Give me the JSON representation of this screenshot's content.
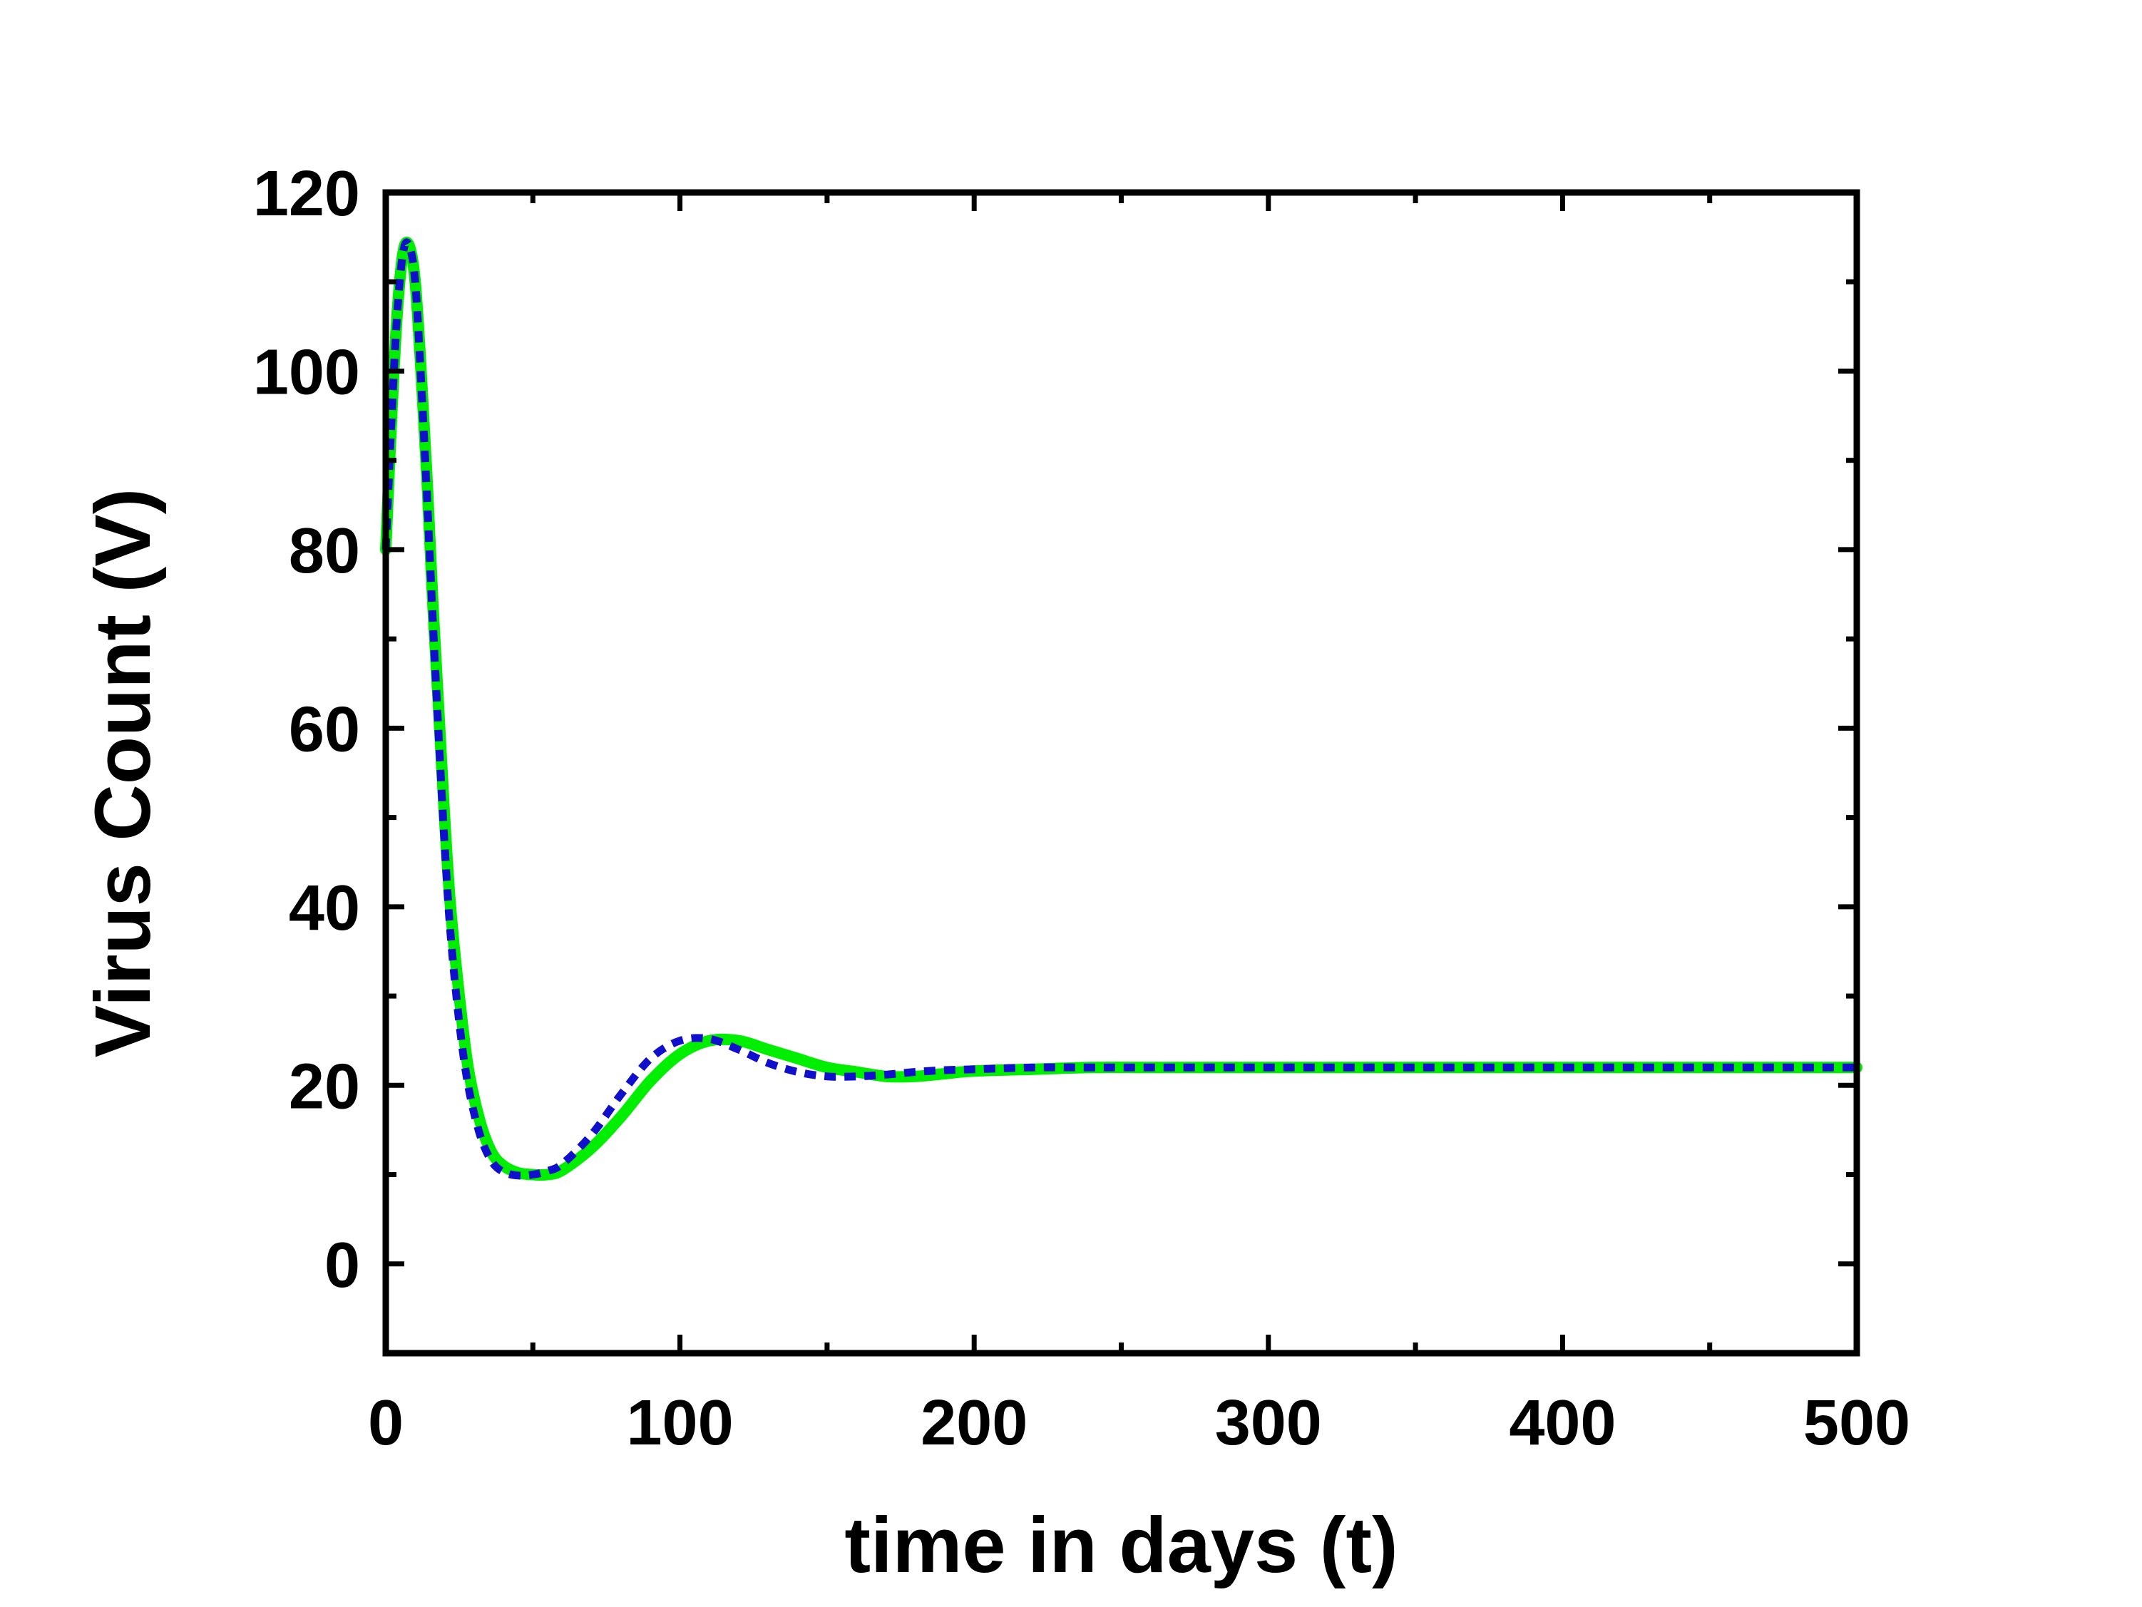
{
  "chart_data": {
    "type": "line",
    "title": "",
    "xlabel": "time in days (t)",
    "ylabel": "Virus Count (V)",
    "xlim": [
      0,
      500
    ],
    "ylim": [
      -10,
      120
    ],
    "x_ticks": [
      0,
      100,
      200,
      300,
      400,
      500
    ],
    "x_tick_labels": [
      "0",
      "100",
      "200",
      "300",
      "400",
      "500"
    ],
    "y_ticks": [
      0,
      20,
      40,
      60,
      80,
      100,
      120
    ],
    "y_tick_labels": [
      "0",
      "20",
      "40",
      "60",
      "80",
      "100",
      "120"
    ],
    "grid": false,
    "legend": "none",
    "series": [
      {
        "color": "#00ee00",
        "style": "solid",
        "x": [
          0,
          2,
          4,
          6,
          8,
          10,
          12,
          14,
          16,
          18,
          20,
          22,
          25,
          28,
          32,
          36,
          40,
          45,
          50,
          55,
          60,
          70,
          80,
          90,
          100,
          110,
          120,
          130,
          140,
          150,
          160,
          170,
          180,
          190,
          200,
          220,
          240,
          260,
          300,
          350,
          400,
          450,
          500
        ],
        "y": [
          80,
          95,
          107,
          113.5,
          114,
          110,
          100,
          88,
          74,
          62,
          50,
          40,
          30,
          22,
          16,
          12.5,
          11,
          10.2,
          10,
          10,
          10.5,
          13,
          16.5,
          20.5,
          23.5,
          25,
          25,
          24,
          23,
          22,
          21.5,
          21,
          21,
          21.3,
          21.6,
          21.8,
          22,
          22,
          22,
          22,
          22,
          22,
          22
        ]
      },
      {
        "color": "#1010cc",
        "style": "dotted",
        "x": [
          0,
          2,
          4,
          6,
          8,
          10,
          12,
          14,
          16,
          18,
          20,
          22,
          25,
          28,
          32,
          36,
          40,
          45,
          50,
          55,
          60,
          70,
          80,
          90,
          100,
          110,
          120,
          130,
          140,
          150,
          160,
          170,
          180,
          190,
          200,
          220,
          240,
          260,
          300,
          350,
          400,
          450,
          500
        ],
        "y": [
          80,
          95,
          107,
          113.5,
          114,
          110,
          99,
          86,
          72,
          59,
          47,
          37,
          27,
          20,
          14.5,
          11.5,
          10.3,
          9.9,
          10,
          10.4,
          11.2,
          14.5,
          19,
          23,
          25,
          25.2,
          24,
          22.5,
          21.5,
          21,
          21,
          21.2,
          21.5,
          21.7,
          21.8,
          22,
          22,
          22,
          22,
          22,
          22,
          22,
          22
        ]
      }
    ]
  }
}
